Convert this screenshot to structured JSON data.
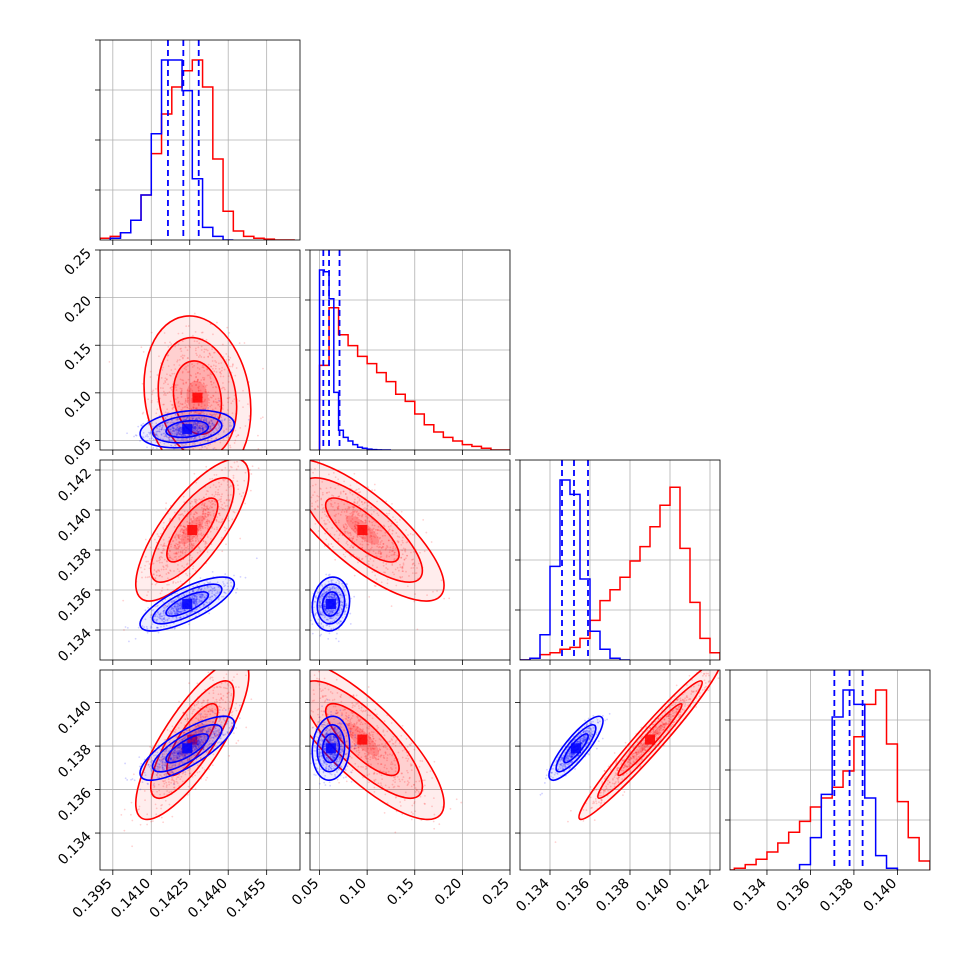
{
  "colors": {
    "series_a": "#ff0000",
    "series_b": "#0000ff",
    "grid": "#b0b0b0"
  },
  "chart_data": {
    "type": "corner",
    "grid": true,
    "series": [
      {
        "name": "",
        "color": "#ff0000",
        "marginals": [
          {
            "dim": 0,
            "bins": [
              0.139,
              0.1394,
              0.1398,
              0.1402,
              0.1406,
              0.141,
              0.1414,
              0.1418,
              0.1422,
              0.1426,
              0.143,
              0.1434,
              0.1438,
              0.1442,
              0.1446,
              0.145,
              0.1454,
              0.1458,
              0.1462,
              0.1466
            ],
            "counts": [
              0.01,
              0.02,
              0.04,
              0.11,
              0.25,
              0.48,
              0.7,
              0.85,
              0.94,
              1.0,
              0.85,
              0.45,
              0.16,
              0.05,
              0.02,
              0.01,
              0.005,
              0.0,
              0.0
            ]
          },
          {
            "dim": 1,
            "bins": [
              0.05,
              0.06,
              0.07,
              0.08,
              0.09,
              0.1,
              0.11,
              0.12,
              0.13,
              0.14,
              0.15,
              0.16,
              0.17,
              0.18,
              0.19,
              0.2,
              0.21,
              0.22,
              0.23,
              0.24,
              0.25
            ],
            "counts": [
              0.47,
              0.79,
              0.64,
              0.58,
              0.52,
              0.48,
              0.43,
              0.38,
              0.31,
              0.27,
              0.2,
              0.14,
              0.1,
              0.07,
              0.05,
              0.03,
              0.02,
              0.01,
              0.0,
              0.0
            ]
          },
          {
            "dim": 2,
            "bins": [
              0.1325,
              0.133,
              0.1335,
              0.134,
              0.1345,
              0.135,
              0.1355,
              0.136,
              0.1365,
              0.137,
              0.1375,
              0.138,
              0.1385,
              0.139,
              0.1395,
              0.14,
              0.1405,
              0.141,
              0.1415,
              0.142,
              0.1425
            ],
            "counts": [
              0.0,
              0.01,
              0.03,
              0.04,
              0.06,
              0.07,
              0.12,
              0.22,
              0.33,
              0.39,
              0.46,
              0.55,
              0.63,
              0.74,
              0.86,
              0.96,
              0.62,
              0.32,
              0.12,
              0.04
            ]
          },
          {
            "dim": 3,
            "bins": [
              0.132,
              0.1325,
              0.133,
              0.1335,
              0.134,
              0.1345,
              0.135,
              0.1355,
              0.136,
              0.1365,
              0.137,
              0.1375,
              0.138,
              0.1385,
              0.139,
              0.1395,
              0.14,
              0.1405,
              0.141,
              0.1415
            ],
            "counts": [
              0.0,
              0.01,
              0.03,
              0.06,
              0.1,
              0.15,
              0.21,
              0.27,
              0.35,
              0.4,
              0.46,
              0.55,
              0.74,
              0.92,
              1.0,
              0.7,
              0.38,
              0.18,
              0.05
            ]
          }
        ],
        "pairs": [
          {
            "x": 0,
            "y": 1,
            "mean": [
              0.1428,
              0.095
            ],
            "sd": [
              0.00085,
              0.035
            ],
            "corr": -0.15
          },
          {
            "x": 0,
            "y": 2,
            "mean": [
              0.1426,
              0.139
            ],
            "sd": [
              0.0009,
              0.00145
            ],
            "corr": 0.76
          },
          {
            "x": 1,
            "y": 2,
            "mean": [
              0.095,
              0.139
            ],
            "sd": [
              0.035,
              0.00145
            ],
            "corr": -0.78
          },
          {
            "x": 0,
            "y": 3,
            "mean": [
              0.1426,
              0.1383
            ],
            "sd": [
              0.0009,
              0.0015
            ],
            "corr": 0.8
          },
          {
            "x": 1,
            "y": 3,
            "mean": [
              0.095,
              0.1383
            ],
            "sd": [
              0.035,
              0.0015
            ],
            "corr": -0.8
          },
          {
            "x": 2,
            "y": 3,
            "mean": [
              0.139,
              0.1383
            ],
            "sd": [
              0.00145,
              0.0015
            ],
            "corr": 0.97
          }
        ]
      },
      {
        "name": "",
        "color": "#0000ff",
        "marginals": [
          {
            "dim": 0,
            "bins": [
              0.1394,
              0.1398,
              0.1402,
              0.1406,
              0.141,
              0.1414,
              0.1418,
              0.1422,
              0.1426,
              0.143,
              0.1434,
              0.1438,
              0.1442
            ],
            "counts": [
              0.01,
              0.04,
              0.11,
              0.25,
              0.59,
              1.0,
              1.0,
              0.83,
              0.34,
              0.07,
              0.02,
              0.0
            ],
            "quantiles": [
              0.14165,
              0.14225,
              0.14285
            ]
          },
          {
            "dim": 1,
            "bins": [
              0.05,
              0.055,
              0.06,
              0.065,
              0.07,
              0.075,
              0.08,
              0.085,
              0.09,
              0.095,
              0.1,
              0.105,
              0.11,
              0.115,
              0.12,
              0.125
            ],
            "counts": [
              1.0,
              0.99,
              0.84,
              0.32,
              0.11,
              0.07,
              0.05,
              0.03,
              0.015,
              0.01,
              0.005,
              0.002,
              0.001,
              0.0,
              0.0
            ],
            "quantiles": [
              0.054,
              0.06,
              0.071
            ]
          },
          {
            "dim": 2,
            "bins": [
              0.1325,
              0.133,
              0.1335,
              0.134,
              0.1345,
              0.135,
              0.1355,
              0.136,
              0.1365,
              0.137,
              0.1375,
              0.138
            ],
            "counts": [
              0.0,
              0.01,
              0.14,
              0.52,
              1.0,
              0.92,
              0.45,
              0.16,
              0.06,
              0.01,
              0.0
            ],
            "quantiles": [
              0.1346,
              0.1352,
              0.1359
            ]
          },
          {
            "dim": 3,
            "bins": [
              0.1355,
              0.136,
              0.1365,
              0.137,
              0.1375,
              0.138,
              0.1385,
              0.139,
              0.1395,
              0.14
            ],
            "counts": [
              0.03,
              0.18,
              0.42,
              0.85,
              1.0,
              0.92,
              0.4,
              0.08,
              0.01
            ],
            "quantiles": [
              0.1371,
              0.1378,
              0.1384
            ]
          }
        ],
        "pairs": [
          {
            "x": 0,
            "y": 1,
            "mean": [
              0.1424,
              0.062
            ],
            "sd": [
              0.00075,
              0.008
            ],
            "corr": 0.25
          },
          {
            "x": 0,
            "y": 2,
            "mean": [
              0.1424,
              0.1353
            ],
            "sd": [
              0.00075,
              0.00055
            ],
            "corr": 0.75
          },
          {
            "x": 1,
            "y": 2,
            "mean": [
              0.062,
              0.1353
            ],
            "sd": [
              0.008,
              0.00055
            ],
            "corr": 0.1
          },
          {
            "x": 0,
            "y": 3,
            "mean": [
              0.1424,
              0.1379
            ],
            "sd": [
              0.00075,
              0.0006
            ],
            "corr": 0.78
          },
          {
            "x": 1,
            "y": 3,
            "mean": [
              0.062,
              0.1379
            ],
            "sd": [
              0.008,
              0.0006
            ],
            "corr": 0.1
          },
          {
            "x": 2,
            "y": 3,
            "mean": [
              0.1353,
              0.1379
            ],
            "sd": [
              0.00055,
              0.0006
            ],
            "corr": 0.85
          }
        ]
      }
    ],
    "axes": [
      {
        "dim": 0,
        "range": [
          0.139,
          0.1468
        ],
        "ticks": [
          0.1395,
          0.141,
          0.1425,
          0.144,
          0.1455
        ],
        "tick_labels": [
          "0.1395",
          "0.1410",
          "0.1425",
          "0.1440",
          "0.1455"
        ]
      },
      {
        "dim": 1,
        "range": [
          0.04,
          0.25
        ],
        "ticks": [
          0.05,
          0.1,
          0.15,
          0.2,
          0.25
        ],
        "tick_labels": [
          "0.05",
          "0.10",
          "0.15",
          "0.20",
          "0.25"
        ]
      },
      {
        "dim": 2,
        "range": [
          0.1325,
          0.1425
        ],
        "ticks": [
          0.134,
          0.136,
          0.138,
          0.14,
          0.142
        ],
        "tick_labels": [
          "0.134",
          "0.136",
          "0.138",
          "0.140",
          "0.142"
        ]
      },
      {
        "dim": 3,
        "range": [
          0.1323,
          0.1415
        ],
        "ticks": [
          0.134,
          0.136,
          0.138,
          0.14
        ],
        "tick_labels": [
          "0.134",
          "0.136",
          "0.138",
          "0.140"
        ]
      }
    ],
    "xlabel": "",
    "ylabel": "",
    "title": ""
  }
}
